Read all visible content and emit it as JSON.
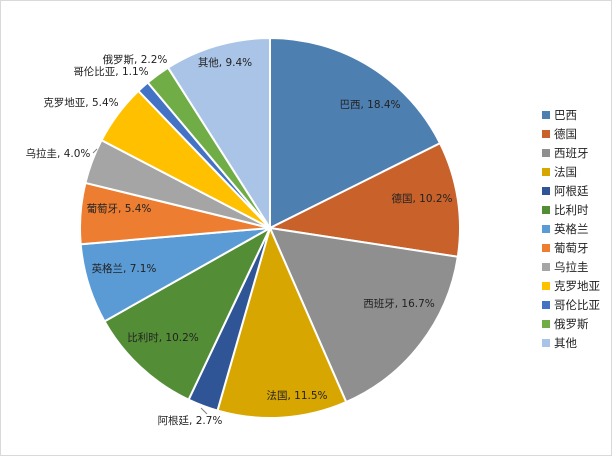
{
  "chart_data": {
    "type": "pie",
    "title": "",
    "legend_position": "right",
    "start_angle_deg": 0,
    "direction": "clockwise",
    "slices": [
      {
        "name": "巴西",
        "value": 18.4,
        "label": "巴西, 18.4%",
        "color": "#4e7fb1"
      },
      {
        "name": "德国",
        "value": 10.2,
        "label": "德国, 10.2%",
        "color": "#c8612a"
      },
      {
        "name": "西班牙",
        "value": 16.7,
        "label": "西班牙, 16.7%",
        "color": "#8f8f8f"
      },
      {
        "name": "法国",
        "value": 11.5,
        "label": "法国, 11.5%",
        "color": "#d8a600"
      },
      {
        "name": "阿根廷",
        "value": 2.7,
        "label": "阿根廷, 2.7%",
        "color": "#2f5597"
      },
      {
        "name": "比利时",
        "value": 10.2,
        "label": "比利时, 10.2%",
        "color": "#538d36"
      },
      {
        "name": "英格兰",
        "value": 7.1,
        "label": "英格兰, 7.1%",
        "color": "#5b9bd5"
      },
      {
        "name": "葡萄牙",
        "value": 5.4,
        "label": "葡萄牙, 5.4%",
        "color": "#ed7d31"
      },
      {
        "name": "乌拉圭",
        "value": 4.0,
        "label": "乌拉圭, 4.0%",
        "color": "#a5a5a5"
      },
      {
        "name": "克罗地亚",
        "value": 5.4,
        "label": "克罗地亚, 5.4%",
        "color": "#ffc000"
      },
      {
        "name": "哥伦比亚",
        "value": 1.1,
        "label": "哥伦比亚, 1.1%",
        "color": "#4472c4"
      },
      {
        "name": "俄罗斯",
        "value": 2.2,
        "label": "俄罗斯, 2.2%",
        "color": "#70ad47"
      },
      {
        "name": "其他",
        "value": 9.4,
        "label": "其他, 9.4%",
        "color": "#a9c4e6"
      }
    ]
  }
}
